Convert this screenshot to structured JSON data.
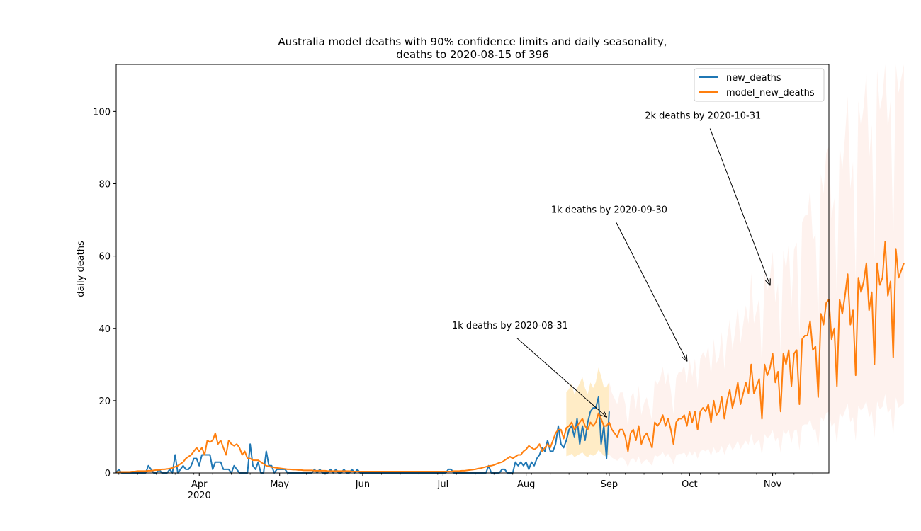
{
  "chart_data": {
    "type": "line",
    "title_line1": "Australia model deaths with 90% confidence limits and daily seasonality,",
    "title_line2": "deaths to 2020-08-15 of 396",
    "ylabel": "daily deaths",
    "xlabel": "",
    "x_start": "2020-03-01",
    "x_end": "2020-11-22",
    "ylim": [
      0,
      113
    ],
    "yticks": [
      0,
      20,
      40,
      60,
      80,
      100
    ],
    "xticks": [
      {
        "date": "2020-04-01",
        "label": "Apr",
        "sublabel": "2020"
      },
      {
        "date": "2020-05-01",
        "label": "May",
        "sublabel": ""
      },
      {
        "date": "2020-06-01",
        "label": "Jun",
        "sublabel": ""
      },
      {
        "date": "2020-07-01",
        "label": "Jul",
        "sublabel": ""
      },
      {
        "date": "2020-08-01",
        "label": "Aug",
        "sublabel": ""
      },
      {
        "date": "2020-09-01",
        "label": "Sep",
        "sublabel": ""
      },
      {
        "date": "2020-10-01",
        "label": "Oct",
        "sublabel": ""
      },
      {
        "date": "2020-11-01",
        "label": "Nov",
        "sublabel": ""
      }
    ],
    "legend_position": "top-right",
    "series": [
      {
        "name": "new_deaths",
        "color": "#1f77b4",
        "start": "2020-03-01",
        "values": [
          0,
          1,
          0,
          0,
          0,
          0,
          0,
          0,
          0,
          0,
          0,
          0,
          2,
          1,
          0,
          0,
          1,
          0,
          0,
          0,
          1,
          0,
          5,
          0,
          1,
          2,
          1,
          1,
          2,
          4,
          4,
          2,
          5,
          5,
          5,
          5,
          1,
          3,
          3,
          3,
          1,
          1,
          1,
          0,
          2,
          1,
          0,
          0,
          0,
          0,
          8,
          2,
          1,
          3,
          0,
          0,
          6,
          2,
          2,
          0,
          1,
          1,
          1,
          1,
          0,
          0,
          0,
          0,
          0,
          0,
          0,
          0,
          0,
          0,
          1,
          0,
          1,
          0,
          0,
          0,
          1,
          0,
          1,
          0,
          0,
          1,
          0,
          0,
          1,
          0,
          1,
          0,
          0,
          0,
          0,
          0,
          0,
          0,
          0,
          0,
          0,
          0,
          0,
          0,
          0,
          0,
          0,
          0,
          0,
          0,
          0,
          0,
          0,
          0,
          0,
          0,
          0,
          0,
          0,
          0,
          0,
          0,
          0,
          0,
          1,
          1,
          0,
          0,
          0,
          0,
          0,
          0,
          0,
          0,
          0,
          0,
          0,
          0,
          0,
          2,
          0,
          0,
          0,
          0,
          1,
          1,
          0,
          0,
          0,
          3,
          2,
          3,
          2,
          3,
          1,
          3,
          2,
          4,
          5,
          7,
          6,
          9,
          6,
          6,
          8,
          13,
          8,
          7,
          9,
          12,
          13,
          10,
          15,
          8,
          13,
          9,
          14,
          17,
          18,
          18,
          21,
          8,
          13,
          4,
          17
        ]
      },
      {
        "name": "model_new_deaths",
        "color": "#ff7f0e",
        "start": "2020-03-01",
        "values": [
          0.2,
          0.3,
          0.3,
          0.3,
          0.3,
          0.3,
          0.4,
          0.4,
          0.5,
          0.5,
          0.5,
          0.5,
          0.6,
          0.6,
          0.7,
          0.8,
          0.8,
          1,
          1,
          1.1,
          1.2,
          1.4,
          1.7,
          2,
          2.5,
          3,
          4,
          4.5,
          5,
          6,
          7,
          6,
          7,
          5,
          9,
          8.5,
          9,
          11,
          8,
          9,
          7,
          5,
          9,
          8,
          7.5,
          8,
          7,
          5,
          6,
          4,
          4,
          3.5,
          3.5,
          3.5,
          3,
          2.5,
          2,
          1.8,
          1.6,
          1.5,
          1.4,
          1.3,
          1.2,
          1.1,
          1,
          1,
          0.9,
          0.9,
          0.8,
          0.8,
          0.7,
          0.7,
          0.7,
          0.7,
          0.6,
          0.6,
          0.6,
          0.6,
          0.6,
          0.5,
          0.5,
          0.5,
          0.5,
          0.5,
          0.5,
          0.5,
          0.5,
          0.5,
          0.4,
          0.4,
          0.4,
          0.4,
          0.4,
          0.4,
          0.4,
          0.4,
          0.4,
          0.4,
          0.4,
          0.4,
          0.4,
          0.4,
          0.4,
          0.4,
          0.4,
          0.4,
          0.4,
          0.4,
          0.4,
          0.4,
          0.4,
          0.4,
          0.4,
          0.4,
          0.4,
          0.4,
          0.4,
          0.4,
          0.4,
          0.4,
          0.4,
          0.4,
          0.4,
          0.4,
          0.4,
          0.4,
          0.5,
          0.5,
          0.5,
          0.6,
          0.6,
          0.7,
          0.8,
          0.9,
          1,
          1.2,
          1.3,
          1.5,
          1.7,
          1.9,
          2,
          2.2,
          2.5,
          2.8,
          3,
          3.5,
          4,
          4.5,
          4,
          4.5,
          5,
          5,
          6,
          6.5,
          7.5,
          7,
          6.5,
          7,
          8,
          6,
          7,
          8,
          7,
          9,
          11,
          12,
          12,
          9.5,
          12.5,
          13,
          14,
          12,
          13,
          14,
          15,
          13,
          12,
          14,
          13,
          14,
          16.5,
          15,
          13,
          13,
          14,
          12,
          11,
          10,
          12,
          12,
          10,
          6,
          11,
          12,
          9,
          13,
          8,
          10,
          11,
          9,
          7,
          14,
          13,
          14,
          16,
          13,
          15,
          12,
          8,
          14,
          15,
          15,
          16,
          13,
          17,
          14,
          17,
          12,
          17,
          18,
          17,
          19,
          14,
          20,
          16,
          17,
          21,
          15,
          20,
          23,
          18,
          21,
          25,
          19,
          22,
          25,
          22,
          30,
          22,
          24,
          26,
          15,
          30,
          27,
          29,
          33,
          25,
          28,
          17,
          33,
          30,
          34,
          24,
          33,
          34,
          19,
          37,
          38,
          38,
          42,
          34,
          35,
          21,
          44,
          41,
          47,
          48,
          37,
          40,
          24,
          48,
          44,
          49,
          55,
          41,
          45,
          27,
          54,
          50,
          53,
          58,
          45,
          50,
          30,
          58,
          52,
          54,
          64,
          49,
          53,
          32,
          62,
          54,
          56,
          58
        ]
      }
    ],
    "confidence_band": {
      "start": "2020-08-16",
      "color_near": "#ffe6b3",
      "color_far": "#fde8e0"
    },
    "annotations": [
      {
        "text": "1k deaths by 2020-08-31",
        "text_date": "2020-07-26",
        "text_y": 40,
        "arrow_date": "2020-08-31",
        "arrow_y": 15.5
      },
      {
        "text": "1k deaths by 2020-09-30",
        "text_date": "2020-09-01",
        "text_y": 72,
        "arrow_date": "2020-09-30",
        "arrow_y": 31
      },
      {
        "text": "2k deaths by 2020-10-31",
        "text_date": "2020-10-06",
        "text_y": 98,
        "arrow_date": "2020-10-31",
        "arrow_y": 52
      }
    ]
  }
}
